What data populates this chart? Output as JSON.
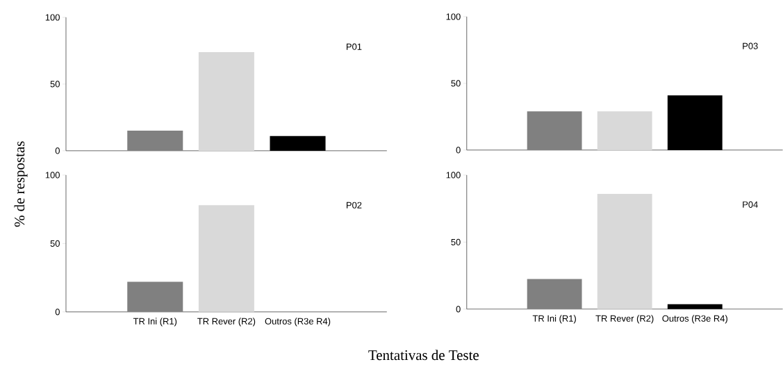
{
  "chart_data": [
    {
      "type": "bar",
      "categories": [
        null,
        null,
        null
      ],
      "values": [
        15,
        74,
        11
      ],
      "colors": [
        "#808080",
        "#d9d9d9",
        "#000000"
      ],
      "ylim": [
        0,
        100
      ],
      "yticks": [
        0,
        50,
        100
      ],
      "annotations": [
        "P01"
      ],
      "ylabel": "% de respostas"
    },
    {
      "type": "bar",
      "categories": [
        null,
        null,
        null
      ],
      "values": [
        29,
        29,
        41
      ],
      "colors": [
        "#808080",
        "#d9d9d9",
        "#000000"
      ],
      "ylim": [
        0,
        100
      ],
      "yticks": [
        0,
        50,
        100
      ],
      "annotations": [
        "P03"
      ]
    },
    {
      "type": "bar",
      "categories": [
        "TR Ini (R1)",
        "TR Rever (R2)",
        "Outros (R3e R4)"
      ],
      "values": [
        22,
        78,
        0
      ],
      "colors": [
        "#808080",
        "#d9d9d9",
        "#000000"
      ],
      "ylim": [
        0,
        100
      ],
      "yticks": [
        0,
        50,
        100
      ],
      "annotations": [
        "P02"
      ],
      "xlabel": "Tentativas de Teste"
    },
    {
      "type": "bar",
      "categories": [
        "TR Ini (R1)",
        "TR Rever (R2)",
        "Outros (R3e R4)"
      ],
      "values": [
        22.5,
        86,
        3.7
      ],
      "colors": [
        "#808080",
        "#d9d9d9",
        "#000000"
      ],
      "ylim": [
        0,
        100
      ],
      "yticks": [
        0,
        50,
        100
      ],
      "annotations": [
        "P04"
      ]
    }
  ]
}
